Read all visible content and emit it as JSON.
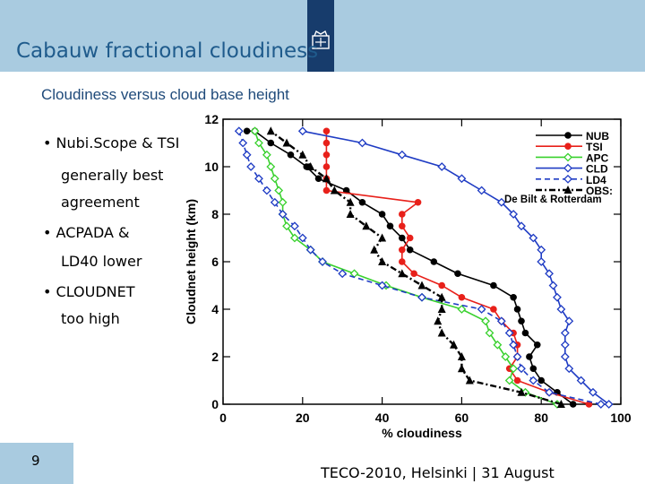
{
  "header": {
    "title": "Cabauw fractional cloudiness"
  },
  "subtitle": "Cloudiness versus cloud base height",
  "bullets": [
    {
      "lines": [
        "Nubi.Scope & TSI",
        "generally best",
        "agreement"
      ]
    },
    {
      "lines": [
        "ACPADA &",
        "LD40 lower"
      ]
    },
    {
      "lines": [
        "CLOUDNET",
        "too high"
      ]
    }
  ],
  "footer": {
    "page": "9",
    "text": "TECO-2010, Helsinki | 31 August"
  },
  "chart_data": {
    "type": "line",
    "xlabel": "% cloudiness",
    "ylabel": "Cloudnet height (km)",
    "xlim": [
      0,
      100
    ],
    "ylim": [
      0,
      12
    ],
    "xticks": [
      0,
      20,
      40,
      60,
      80,
      100
    ],
    "yticks": [
      0,
      2,
      4,
      6,
      8,
      10,
      12
    ],
    "legend_position": "top-right",
    "legend_note": "De Bilt & Rotterdam",
    "series": [
      {
        "name": "NUB",
        "color": "#000000",
        "dash": "solid",
        "marker": "circle",
        "points": [
          [
            88,
            0
          ],
          [
            84,
            0.5
          ],
          [
            80,
            1
          ],
          [
            78,
            1.5
          ],
          [
            77,
            2
          ],
          [
            79,
            2.5
          ],
          [
            76,
            3
          ],
          [
            75,
            3.5
          ],
          [
            74,
            4
          ],
          [
            73,
            4.5
          ],
          [
            68,
            5
          ],
          [
            59,
            5.5
          ],
          [
            53,
            6
          ],
          [
            47,
            6.5
          ],
          [
            45,
            7
          ],
          [
            42,
            7.5
          ],
          [
            40,
            8
          ],
          [
            35,
            8.5
          ],
          [
            31,
            9
          ],
          [
            24,
            9.5
          ],
          [
            21,
            10
          ],
          [
            17,
            10.5
          ],
          [
            12,
            11
          ],
          [
            8,
            11.5
          ],
          [
            6,
            11.5
          ]
        ]
      },
      {
        "name": "TSI",
        "color": "#e8201a",
        "dash": "solid",
        "marker": "circle",
        "points": [
          [
            92,
            0
          ],
          [
            82,
            0.5
          ],
          [
            74,
            1
          ],
          [
            72,
            1.5
          ],
          [
            74,
            2
          ],
          [
            74,
            2.5
          ],
          [
            73,
            3
          ],
          [
            70,
            3.5
          ],
          [
            68,
            4
          ],
          [
            60,
            4.5
          ],
          [
            55,
            5
          ],
          [
            48,
            5.5
          ],
          [
            45,
            6
          ],
          [
            45,
            6.5
          ],
          [
            47,
            7
          ],
          [
            45,
            7.5
          ],
          [
            45,
            8
          ],
          [
            49,
            8.5
          ],
          [
            26,
            9
          ],
          [
            26,
            9.5
          ],
          [
            26,
            10
          ],
          [
            26,
            10.5
          ],
          [
            26,
            11
          ],
          [
            26,
            11.5
          ]
        ]
      },
      {
        "name": "APC",
        "color": "#39d12e",
        "dash": "solid",
        "marker": "diamond",
        "points": [
          [
            84,
            0
          ],
          [
            76,
            0.5
          ],
          [
            72,
            1
          ],
          [
            73,
            1.5
          ],
          [
            71,
            2
          ],
          [
            69,
            2.5
          ],
          [
            67,
            3
          ],
          [
            66,
            3.5
          ],
          [
            60,
            4
          ],
          [
            50,
            4.5
          ],
          [
            41,
            5
          ],
          [
            33,
            5.5
          ],
          [
            25,
            6
          ],
          [
            22,
            6.5
          ],
          [
            18,
            7
          ],
          [
            16,
            7.5
          ],
          [
            15,
            8
          ],
          [
            15,
            8.5
          ],
          [
            14,
            9
          ],
          [
            13,
            9.5
          ],
          [
            12,
            10
          ],
          [
            11,
            10.5
          ],
          [
            9,
            11
          ],
          [
            8,
            11.5
          ]
        ]
      },
      {
        "name": "CLD",
        "color": "#1f3cc4",
        "dash": "solid",
        "marker": "diamond",
        "points": [
          [
            97,
            0
          ],
          [
            93,
            0.5
          ],
          [
            90,
            1
          ],
          [
            87,
            1.5
          ],
          [
            86,
            2
          ],
          [
            86,
            2.5
          ],
          [
            86,
            3
          ],
          [
            87,
            3.5
          ],
          [
            85,
            4
          ],
          [
            84,
            4.5
          ],
          [
            83,
            5
          ],
          [
            82,
            5.5
          ],
          [
            80,
            6
          ],
          [
            80,
            6.5
          ],
          [
            78,
            7
          ],
          [
            75,
            7.5
          ],
          [
            73,
            8
          ],
          [
            70,
            8.5
          ],
          [
            65,
            9
          ],
          [
            60,
            9.5
          ],
          [
            55,
            10
          ],
          [
            45,
            10.5
          ],
          [
            35,
            11
          ],
          [
            20,
            11.5
          ]
        ]
      },
      {
        "name": "LD4",
        "color": "#1f3cc4",
        "dash": "dashed",
        "marker": "diamond",
        "points": [
          [
            95,
            0
          ],
          [
            82,
            0.5
          ],
          [
            78,
            1
          ],
          [
            75,
            1.5
          ],
          [
            74,
            2
          ],
          [
            73,
            2.5
          ],
          [
            72,
            3
          ],
          [
            70,
            3.5
          ],
          [
            65,
            4
          ],
          [
            50,
            4.5
          ],
          [
            40,
            5
          ],
          [
            30,
            5.5
          ],
          [
            25,
            6
          ],
          [
            22,
            6.5
          ],
          [
            20,
            7
          ],
          [
            18,
            7.5
          ],
          [
            15,
            8
          ],
          [
            13,
            8.5
          ],
          [
            11,
            9
          ],
          [
            9,
            9.5
          ],
          [
            7,
            10
          ],
          [
            6,
            10.5
          ],
          [
            5,
            11
          ],
          [
            4,
            11.5
          ]
        ]
      },
      {
        "name": "OBS:",
        "color": "#000000",
        "dash": "dashdot",
        "marker": "triangle",
        "points": [
          [
            85,
            0
          ],
          [
            75,
            0.5
          ],
          [
            62,
            1
          ],
          [
            60,
            1.5
          ],
          [
            60,
            2
          ],
          [
            58,
            2.5
          ],
          [
            55,
            3
          ],
          [
            54,
            3.5
          ],
          [
            55,
            4
          ],
          [
            55,
            4.5
          ],
          [
            50,
            5
          ],
          [
            45,
            5.5
          ],
          [
            40,
            6
          ],
          [
            38,
            6.5
          ],
          [
            40,
            7
          ],
          [
            36,
            7.5
          ],
          [
            32,
            8
          ],
          [
            32,
            8.5
          ],
          [
            28,
            9
          ],
          [
            26,
            9.5
          ],
          [
            22,
            10
          ],
          [
            20,
            10.5
          ],
          [
            16,
            11
          ],
          [
            12,
            11.5
          ]
        ]
      }
    ]
  }
}
